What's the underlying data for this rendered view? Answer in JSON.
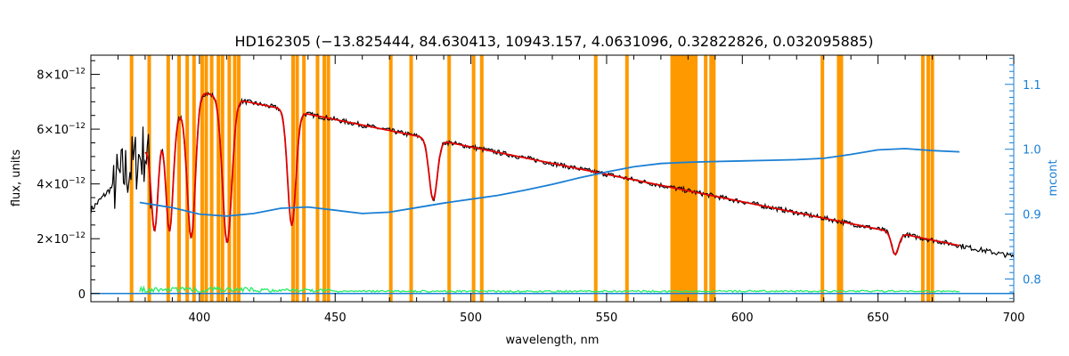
{
  "chart_data": {
    "type": "line",
    "title": "HD162305    (−13.825444, 84.630413, 10943.157, 4.0631096, 0.32822826, 0.032095885)",
    "xlabel": "wavelength, nm",
    "ylabel": "flux, units",
    "y2label": "mcont",
    "xlim": [
      360,
      700
    ],
    "ylim": [
      -0.3,
      8.7
    ],
    "y_exponent": "−12",
    "y2lim": [
      0.765,
      1.145
    ],
    "x_ticks": [
      400,
      450,
      500,
      550,
      600,
      650,
      700
    ],
    "y_ticks": [
      {
        "mantissa": "0",
        "exp": "",
        "value": 0
      },
      {
        "mantissa": "2×10",
        "exp": "−12",
        "value": 2
      },
      {
        "mantissa": "4×10",
        "exp": "−12",
        "value": 4
      },
      {
        "mantissa": "6×10",
        "exp": "−12",
        "value": 6
      },
      {
        "mantissa": "8×10",
        "exp": "−12",
        "value": 8
      }
    ],
    "y2_ticks": [
      0.8,
      0.9,
      1.0,
      1.1
    ],
    "y2_tick_labels": [
      "0.8",
      "0.9",
      "1.0",
      "1.1"
    ],
    "masked_lines_nm": [
      375,
      381.5,
      388.5,
      392.5,
      395.5,
      398,
      401,
      402.5,
      404.5,
      407,
      408.5,
      411,
      413,
      414.5,
      434.5,
      436,
      438.5,
      443.5,
      446,
      447.5,
      470.5,
      478,
      492,
      501,
      504,
      546,
      557.5,
      586.5,
      588.5,
      589.5,
      629.5,
      635.5,
      636.5,
      666.5,
      668.5,
      670
    ],
    "masked_band_nm": [
      573.5,
      583.5
    ],
    "continuum": {
      "x": [
        360,
        400,
        700
      ],
      "y": [
        3.05,
        7.35,
        1.35
      ]
    },
    "absorption_lines": [
      {
        "center": 383.5,
        "depth": 3.3,
        "width": 1.2
      },
      {
        "center": 389,
        "depth": 3.9,
        "width": 1.3
      },
      {
        "center": 397,
        "depth": 5.0,
        "width": 1.5
      },
      {
        "center": 410.2,
        "depth": 5.3,
        "width": 1.7
      },
      {
        "center": 434,
        "depth": 4.2,
        "width": 1.5
      },
      {
        "center": 486.1,
        "depth": 2.2,
        "width": 1.5
      },
      {
        "center": 656.3,
        "depth": 0.8,
        "width": 1.3
      }
    ],
    "series": [
      {
        "role": "observed",
        "color": "#000000",
        "x_range": [
          360,
          700
        ]
      },
      {
        "role": "model",
        "color": "#e00000",
        "x_range": [
          380,
          680
        ]
      },
      {
        "role": "residual",
        "color": "#22ee66",
        "x_range": [
          378,
          680
        ]
      },
      {
        "role": "mcont",
        "axis": "right",
        "color": "#1a7fd4",
        "x": [
          360,
          378,
          390,
          400,
          410,
          420,
          430,
          440,
          450,
          460,
          470,
          480,
          490,
          500,
          510,
          520,
          530,
          540,
          550,
          560,
          570,
          580,
          590,
          600,
          610,
          620,
          630,
          640,
          650,
          660,
          670,
          680
        ],
        "y": [
          0.765,
          0.918,
          0.91,
          0.9,
          0.897,
          0.901,
          0.909,
          0.911,
          0.906,
          0.901,
          0.903,
          0.91,
          0.917,
          0.923,
          0.929,
          0.937,
          0.946,
          0.956,
          0.965,
          0.973,
          0.978,
          0.98,
          0.981,
          0.982,
          0.983,
          0.984,
          0.986,
          0.992,
          0.999,
          1.001,
          0.998,
          0.996
        ]
      }
    ],
    "grid": false,
    "legend": "none"
  },
  "colors": {
    "masked": "#ff9900",
    "observed": "#000000",
    "model": "#e00000",
    "residual": "#22ee66",
    "mcont": "#1a7fd4",
    "highlight": "#ffee00"
  }
}
